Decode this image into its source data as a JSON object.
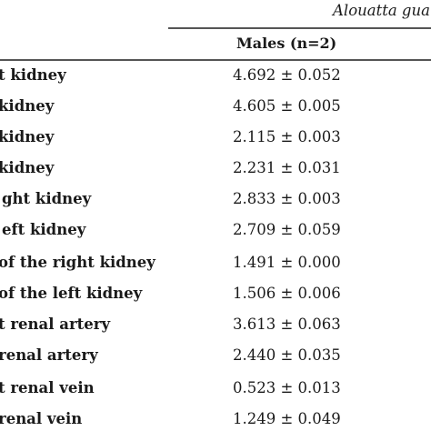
{
  "table": {
    "species_header": "Alouatta gua",
    "column_header": "Males (n=2)",
    "rows": [
      {
        "label": "t kidney",
        "value": "4.692 ± 0.052"
      },
      {
        "label": "kidney",
        "value": "4.605 ± 0.005"
      },
      {
        "label": "kidney",
        "value": "2.115 ± 0.003"
      },
      {
        "label": "kidney",
        "value": "2.231 ± 0.031"
      },
      {
        "label": "ght kidney",
        "value": "2.833 ± 0.003"
      },
      {
        "label": "eft kidney",
        "value": "2.709 ± 0.059"
      },
      {
        "label": "of the right kidney",
        "value": "1.491 ± 0.000"
      },
      {
        "label": "of the left kidney",
        "value": "1.506 ± 0.006"
      },
      {
        "label": "t renal artery",
        "value": "3.613 ± 0.063"
      },
      {
        "label": "renal artery",
        "value": "2.440 ± 0.035"
      },
      {
        "label": "t renal vein",
        "value": "0.523 ± 0.013"
      },
      {
        "label": "renal vein",
        "value": "1.249 ± 0.049"
      }
    ]
  }
}
